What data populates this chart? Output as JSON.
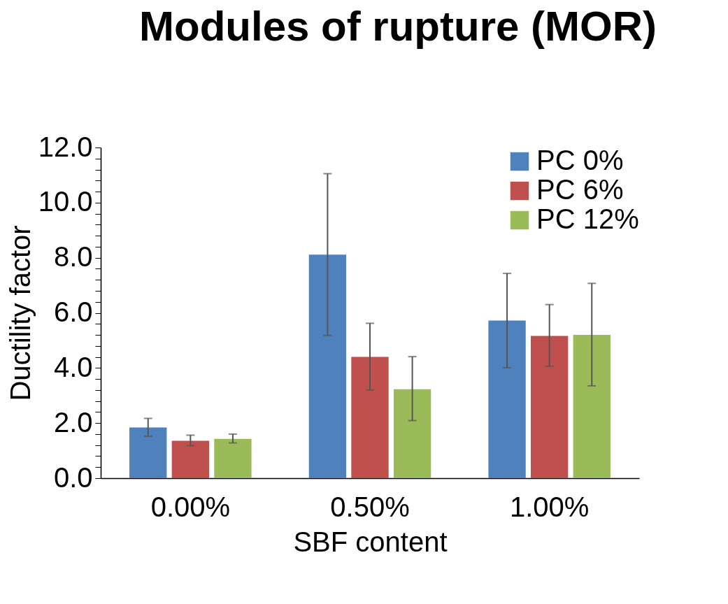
{
  "chart_data": {
    "type": "bar",
    "title": "Modules of rupture (MOR)",
    "xlabel": "SBF content",
    "ylabel": "Ductility factor",
    "categories": [
      "0.00%",
      "0.50%",
      "1.00%"
    ],
    "series": [
      {
        "name": "PC 0%",
        "color": "#4f81bd",
        "values": [
          1.84,
          8.11,
          5.72
        ],
        "errors": [
          [
            1.52,
            2.17
          ],
          [
            5.18,
            11.05
          ],
          [
            4.01,
            7.43
          ]
        ]
      },
      {
        "name": "PC 6%",
        "color": "#c0504d",
        "values": [
          1.36,
          4.4,
          5.16
        ],
        "errors": [
          [
            1.18,
            1.56
          ],
          [
            3.2,
            5.62
          ],
          [
            4.06,
            6.3
          ]
        ]
      },
      {
        "name": "PC 12%",
        "color": "#9bbb59",
        "values": [
          1.43,
          3.23,
          5.2
        ],
        "errors": [
          [
            1.28,
            1.6
          ],
          [
            2.09,
            4.41
          ],
          [
            3.35,
            7.07
          ]
        ]
      }
    ],
    "ylim": [
      0,
      12
    ],
    "yticks": [
      {
        "value": 0,
        "label": "0.0"
      },
      {
        "value": 0.4,
        "label": null
      },
      {
        "value": 0.8,
        "label": null
      },
      {
        "value": 1.2,
        "label": null
      },
      {
        "value": 1.6,
        "label": null
      },
      {
        "value": 2,
        "label": "2.0"
      },
      {
        "value": 2.4,
        "label": null
      },
      {
        "value": 2.8,
        "label": null
      },
      {
        "value": 3.2,
        "label": null
      },
      {
        "value": 3.6,
        "label": null
      },
      {
        "value": 4,
        "label": "4.0"
      },
      {
        "value": 4.4,
        "label": null
      },
      {
        "value": 4.8,
        "label": null
      },
      {
        "value": 5.2,
        "label": null
      },
      {
        "value": 5.6,
        "label": null
      },
      {
        "value": 6,
        "label": "6.0"
      },
      {
        "value": 6.4,
        "label": null
      },
      {
        "value": 6.8,
        "label": null
      },
      {
        "value": 7.2,
        "label": null
      },
      {
        "value": 7.6,
        "label": null
      },
      {
        "value": 8,
        "label": "8.0"
      },
      {
        "value": 8.4,
        "label": null
      },
      {
        "value": 8.8,
        "label": null
      },
      {
        "value": 9.2,
        "label": null
      },
      {
        "value": 9.6,
        "label": null
      },
      {
        "value": 10,
        "label": "10.0"
      },
      {
        "value": 10.4,
        "label": null
      },
      {
        "value": 10.8,
        "label": null
      },
      {
        "value": 11.2,
        "label": null
      },
      {
        "value": 11.6,
        "label": null
      },
      {
        "value": 12,
        "label": "12.0"
      }
    ],
    "grid": false,
    "legend": "top right"
  }
}
